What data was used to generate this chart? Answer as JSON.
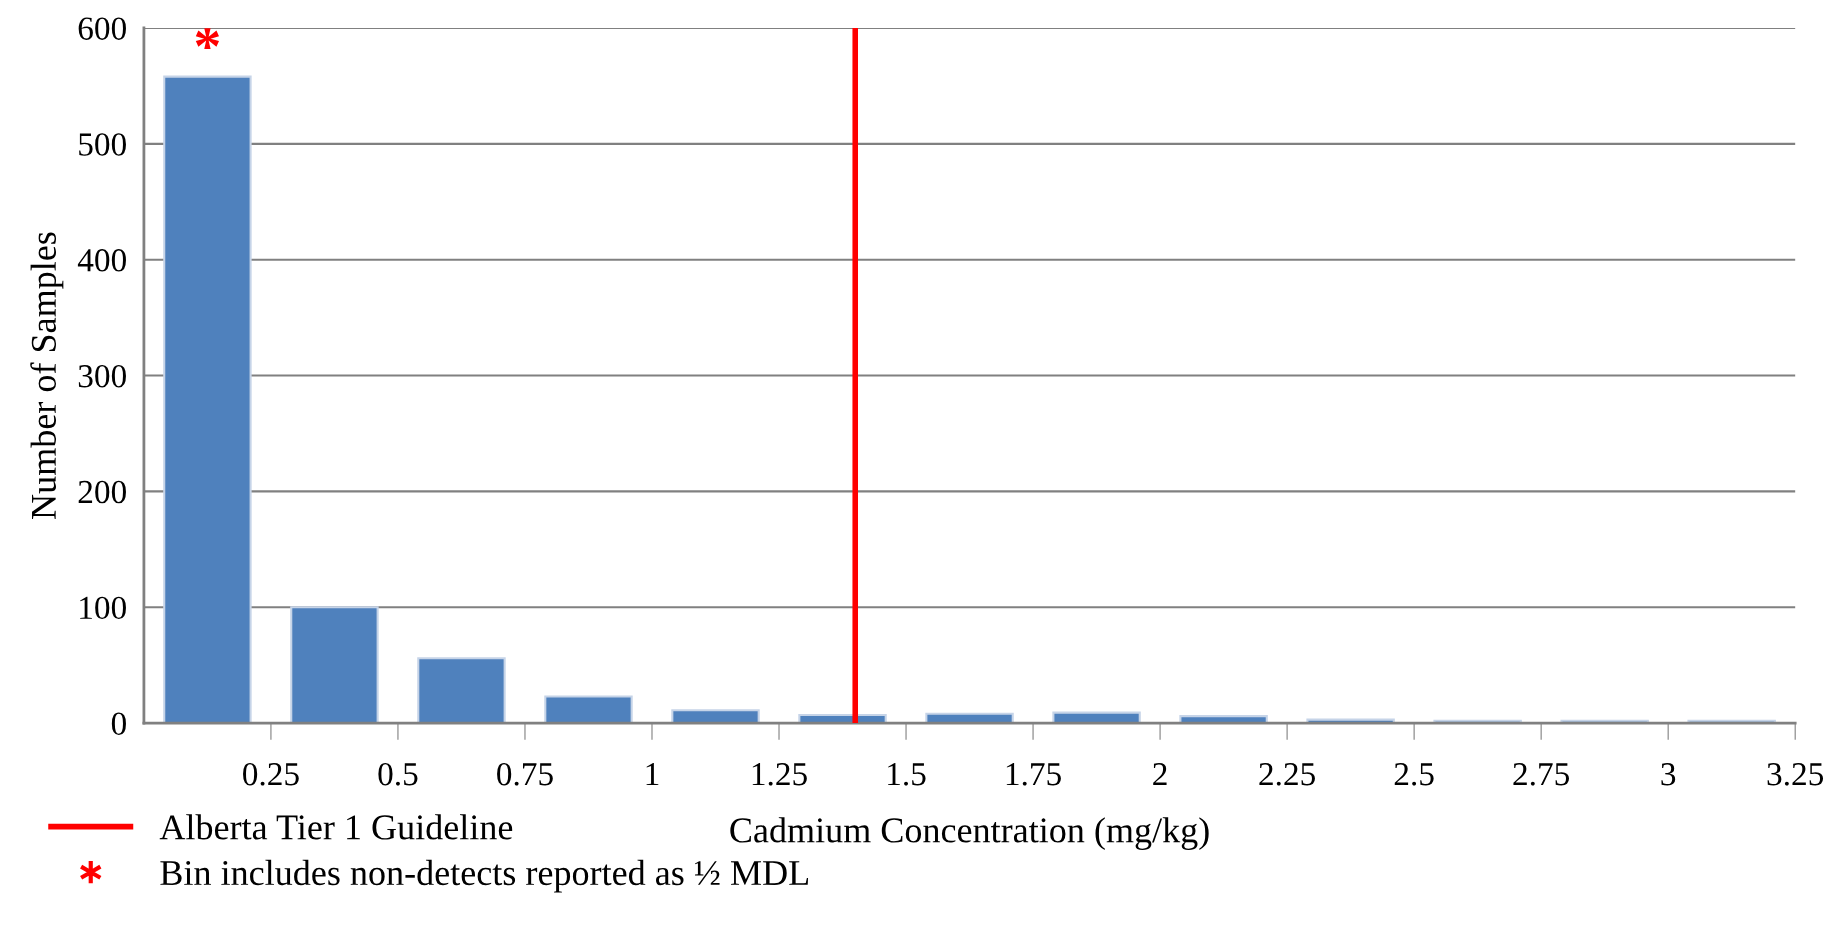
{
  "chart_data": {
    "type": "histogram",
    "xlabel": "Cadmium Concentration (mg/kg)",
    "ylabel": "Number of Samples",
    "bins": [
      0,
      0.25,
      0.5,
      0.75,
      1,
      1.25,
      1.5,
      1.75,
      2,
      2.25,
      2.5,
      2.75,
      3,
      3.25
    ],
    "values": [
      558,
      100,
      56,
      23,
      11,
      7,
      8,
      9,
      6,
      3,
      2,
      2,
      2
    ],
    "color": "#4f81bd",
    "xlim": [
      0,
      3.25
    ],
    "xticks": [
      0.25,
      0.5,
      0.75,
      1,
      1.25,
      1.5,
      1.75,
      2,
      2.25,
      2.5,
      2.75,
      3,
      3.25
    ],
    "ylim": [
      0,
      600
    ],
    "yticks": [
      0,
      100,
      200,
      300,
      400,
      500,
      600
    ],
    "grid": "y",
    "legend": "bottom left",
    "ref_lines": [
      {
        "axis": "x",
        "value": 1.4,
        "label": "Alberta Tier 1 Guideline",
        "color": "#ff0000",
        "line_style": "solid"
      }
    ],
    "annotations": [
      {
        "text": "*",
        "x": 0.125,
        "y": 558
      },
      "Bin includes non-detects reported as ½ MDL"
    ]
  }
}
